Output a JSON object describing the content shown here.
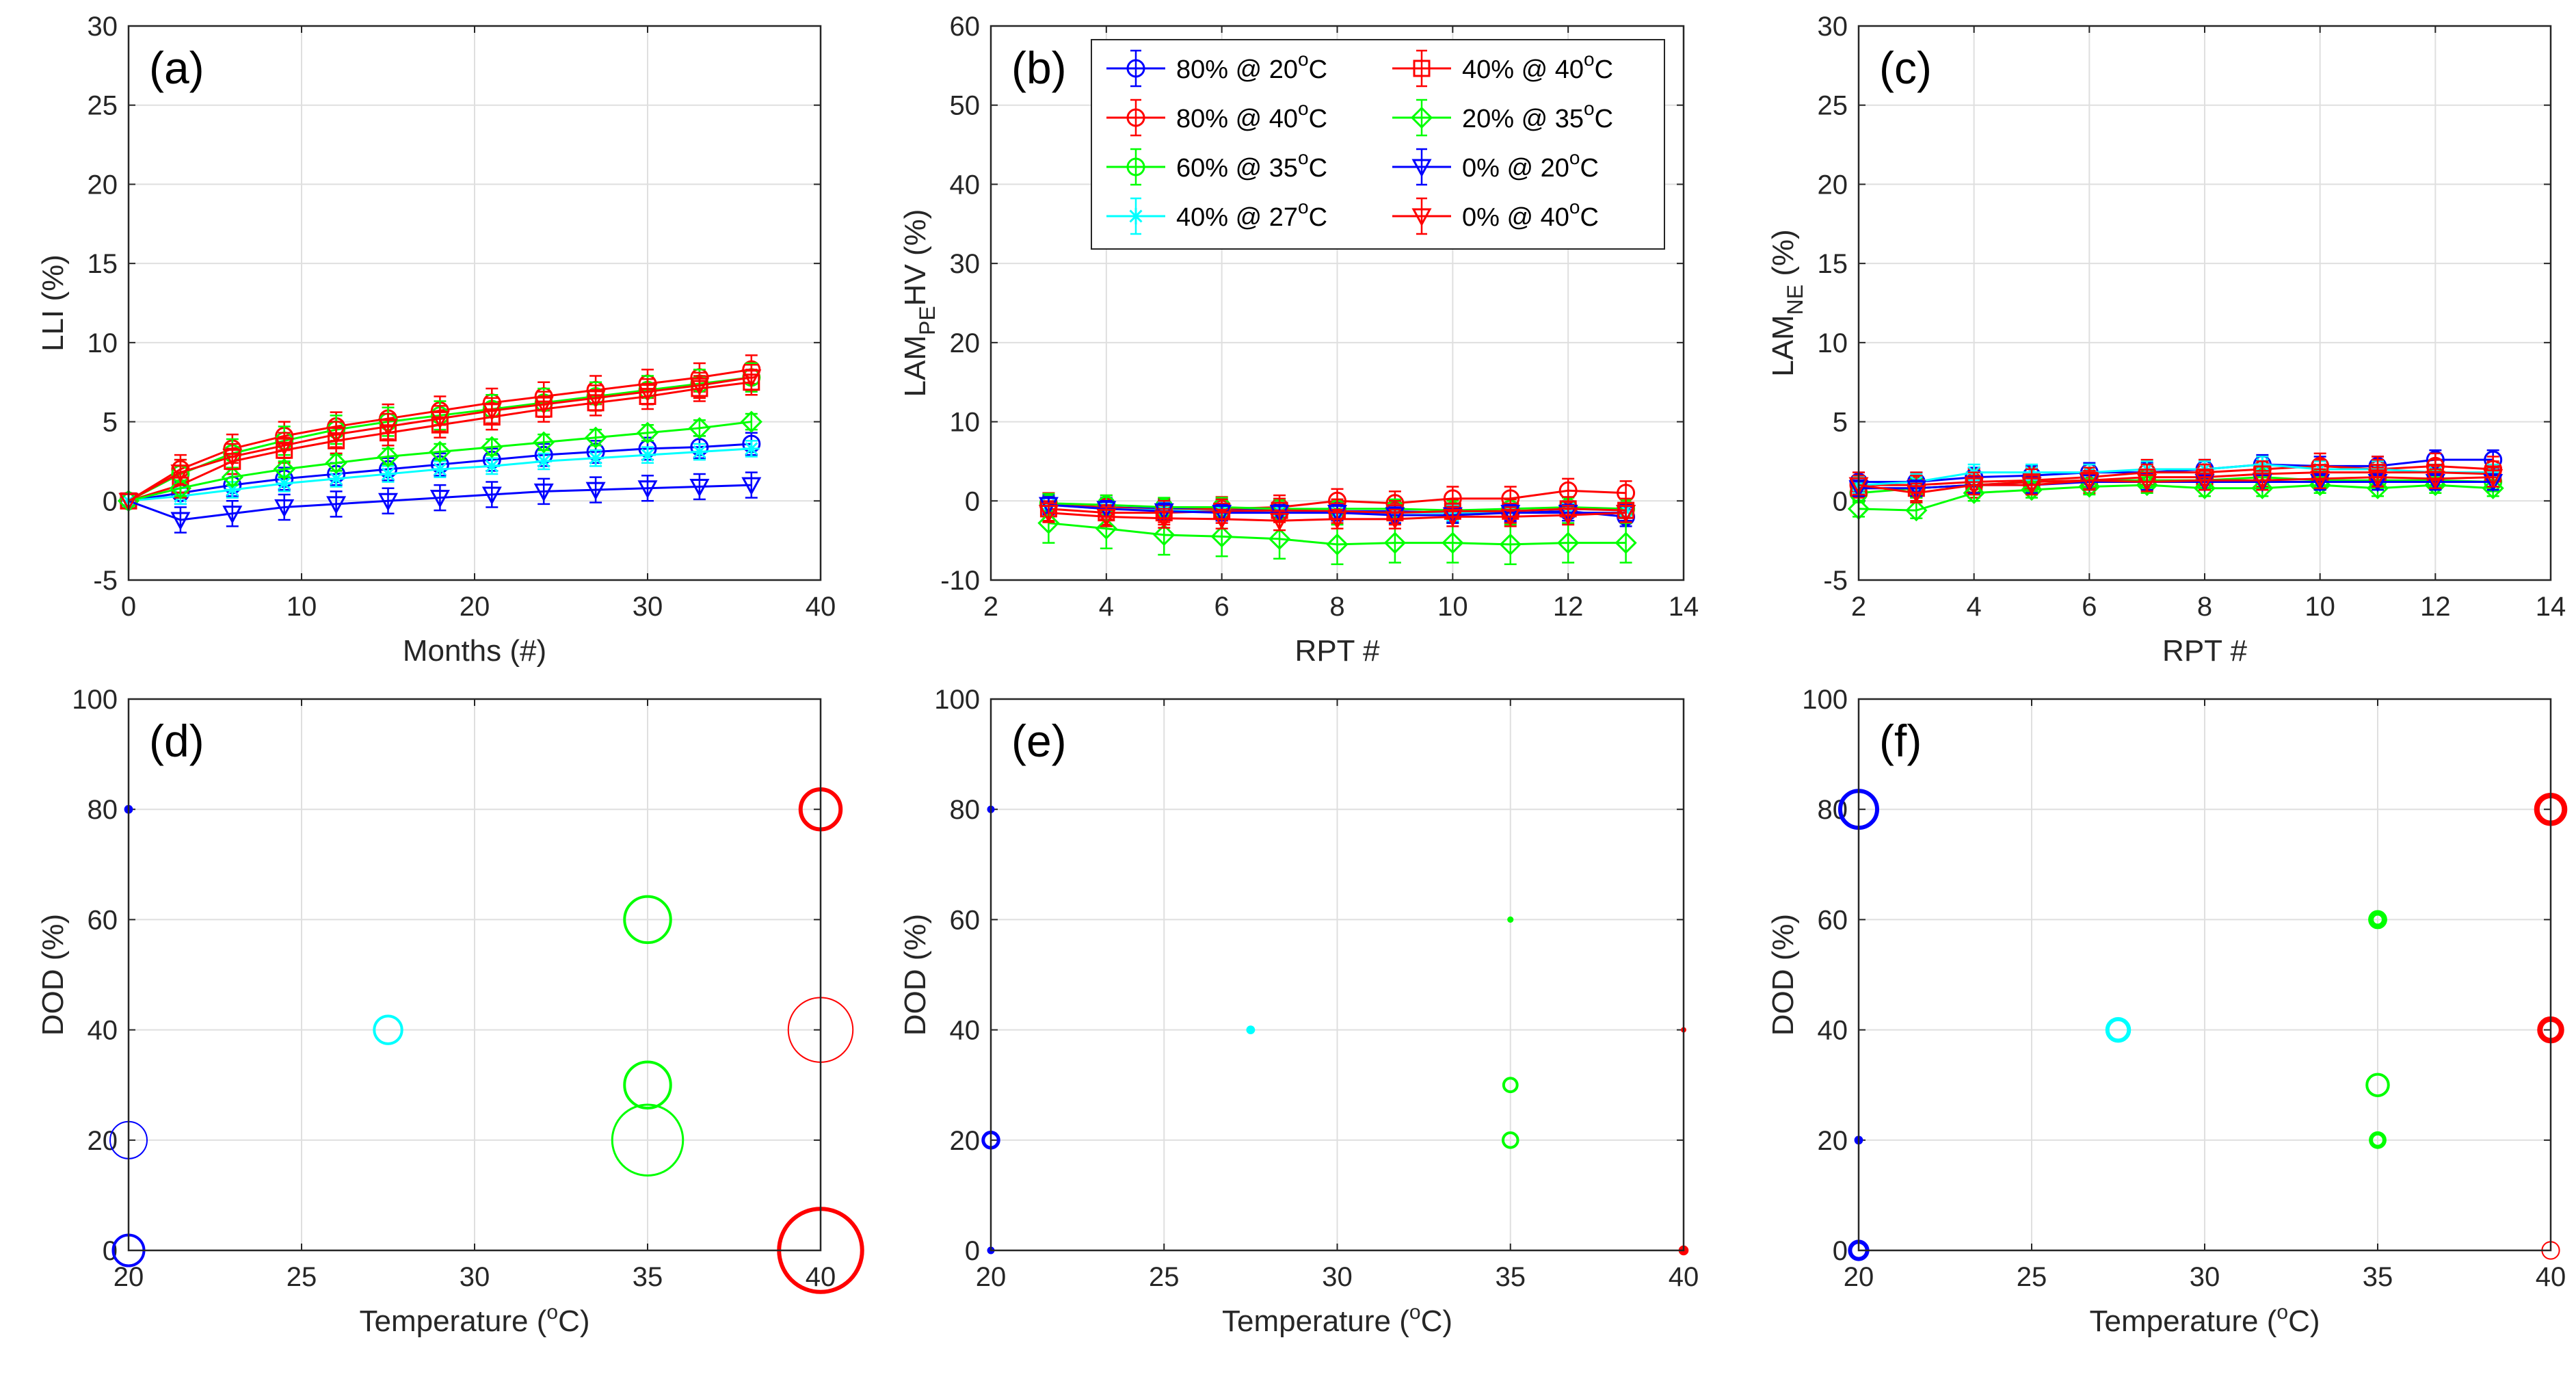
{
  "colors": {
    "blue": "#0000ff",
    "red": "#ff0000",
    "green": "#00ff00",
    "cyan": "#00ffff",
    "axis": "#262626",
    "grid": "#dfdfdf"
  },
  "legend": [
    {
      "label": "80% @ 20°C",
      "base": "80% @ 20",
      "sup": "o",
      "tail": "C",
      "color": "#0000ff",
      "marker": "circle"
    },
    {
      "label": "80% @ 40°C",
      "base": "80% @ 40",
      "sup": "o",
      "tail": "C",
      "color": "#ff0000",
      "marker": "circle"
    },
    {
      "label": "60% @ 35°C",
      "base": "60% @ 35",
      "sup": "o",
      "tail": "C",
      "color": "#00ff00",
      "marker": "circle"
    },
    {
      "label": "40% @ 27°C",
      "base": "40% @ 27",
      "sup": "o",
      "tail": "C",
      "color": "#00ffff",
      "marker": "star"
    },
    {
      "label": "40% @ 40°C",
      "base": "40% @ 40",
      "sup": "o",
      "tail": "C",
      "color": "#ff0000",
      "marker": "square"
    },
    {
      "label": "20% @ 35°C",
      "base": "20% @ 35",
      "sup": "o",
      "tail": "C",
      "color": "#00ff00",
      "marker": "diamond"
    },
    {
      "label": "0% @ 20°C",
      "base": "0% @ 20",
      "sup": "o",
      "tail": "C",
      "color": "#0000ff",
      "marker": "triangle-down"
    },
    {
      "label": "0% @ 40°C",
      "base": "0% @ 40",
      "sup": "o",
      "tail": "C",
      "color": "#ff0000",
      "marker": "triangle-down"
    }
  ],
  "chart_data": [
    {
      "id": "a",
      "panel_label": "(a)",
      "type": "line",
      "xlabel": "Months (#)",
      "ylabel": "LLI (%)",
      "xlim": [
        0,
        40
      ],
      "ylim": [
        -5,
        30
      ],
      "xticks": [
        0,
        10,
        20,
        30,
        40
      ],
      "yticks": [
        -5,
        0,
        5,
        10,
        15,
        20,
        25,
        30
      ],
      "x": [
        0,
        3,
        6,
        9,
        12,
        15,
        18,
        21,
        24,
        27,
        30,
        33,
        36
      ],
      "series": [
        {
          "name": "80% @ 20°C",
          "color": "#0000ff",
          "marker": "circle",
          "err": 0.7,
          "values": [
            0,
            0.5,
            1.0,
            1.4,
            1.7,
            2.0,
            2.3,
            2.6,
            2.9,
            3.1,
            3.3,
            3.4,
            3.6
          ]
        },
        {
          "name": "80% @ 40°C",
          "color": "#ff0000",
          "marker": "circle",
          "err": 0.9,
          "values": [
            0,
            2.0,
            3.3,
            4.1,
            4.7,
            5.2,
            5.7,
            6.2,
            6.6,
            7.0,
            7.4,
            7.8,
            8.3
          ]
        },
        {
          "name": "60% @ 35°C",
          "color": "#00ff00",
          "marker": "circle",
          "err": 0.9,
          "values": [
            0,
            1.7,
            3.0,
            3.8,
            4.5,
            5.0,
            5.4,
            5.8,
            6.2,
            6.6,
            7.0,
            7.4,
            7.8
          ]
        },
        {
          "name": "40% @ 27°C",
          "color": "#00ffff",
          "marker": "star",
          "err": 0.5,
          "values": [
            0,
            0.3,
            0.7,
            1.1,
            1.4,
            1.7,
            2.0,
            2.2,
            2.5,
            2.7,
            2.9,
            3.1,
            3.3
          ]
        },
        {
          "name": "40% @ 40°C",
          "color": "#ff0000",
          "marker": "square",
          "err": 0.8,
          "values": [
            0,
            1.0,
            2.5,
            3.2,
            3.8,
            4.3,
            4.8,
            5.3,
            5.8,
            6.2,
            6.6,
            7.1,
            7.5
          ]
        },
        {
          "name": "20% @ 35°C",
          "color": "#00ff00",
          "marker": "diamond",
          "err": 0.5,
          "values": [
            0,
            0.8,
            1.5,
            2.0,
            2.4,
            2.8,
            3.1,
            3.4,
            3.7,
            4.0,
            4.3,
            4.6,
            5.0
          ]
        },
        {
          "name": "0% @ 20°C",
          "color": "#0000ff",
          "marker": "triangle-down",
          "err": 0.8,
          "values": [
            0,
            -1.2,
            -0.8,
            -0.4,
            -0.2,
            0.0,
            0.2,
            0.4,
            0.6,
            0.7,
            0.8,
            0.9,
            1.0
          ]
        },
        {
          "name": "0% @ 40°C",
          "color": "#ff0000",
          "marker": "triangle-down",
          "err": 0.8,
          "values": [
            0,
            1.8,
            2.8,
            3.5,
            4.2,
            4.7,
            5.2,
            5.7,
            6.1,
            6.5,
            6.9,
            7.3,
            7.8
          ]
        }
      ]
    },
    {
      "id": "b",
      "panel_label": "(b)",
      "type": "line",
      "xlabel": "RPT #",
      "ylabel": "LAM",
      "ylabel_sub": "PE",
      "ylabel_tail": "HV (%)",
      "xlim": [
        2,
        14
      ],
      "ylim": [
        -10,
        60
      ],
      "xticks": [
        2,
        4,
        6,
        8,
        10,
        12,
        14
      ],
      "yticks": [
        -10,
        0,
        10,
        20,
        30,
        40,
        50,
        60
      ],
      "x": [
        3,
        4,
        5,
        6,
        7,
        8,
        9,
        10,
        11,
        12,
        13
      ],
      "series": [
        {
          "name": "80% @ 20°C",
          "color": "#0000ff",
          "marker": "circle",
          "err": 1.2,
          "values": [
            -0.5,
            -0.8,
            -1.0,
            -1.0,
            -1.2,
            -1.3,
            -1.3,
            -1.5,
            -1.5,
            -1.3,
            -2.0
          ]
        },
        {
          "name": "80% @ 40°C",
          "color": "#ff0000",
          "marker": "circle",
          "err": 1.5,
          "values": [
            -0.5,
            -0.8,
            -1.2,
            -1.0,
            -0.8,
            0.0,
            -0.3,
            0.3,
            0.3,
            1.3,
            1.0
          ]
        },
        {
          "name": "60% @ 35°C",
          "color": "#00ff00",
          "marker": "circle",
          "err": 1.2,
          "values": [
            -0.3,
            -0.5,
            -0.8,
            -0.8,
            -1.0,
            -1.0,
            -1.0,
            -1.2,
            -1.0,
            -0.8,
            -1.0
          ]
        },
        {
          "name": "40% @ 27°C",
          "color": "#00ffff",
          "marker": "star",
          "err": 1.0,
          "values": [
            -0.5,
            -1.0,
            -1.2,
            -1.3,
            -1.2,
            -1.5,
            -1.5,
            -1.5,
            -1.3,
            -1.0,
            -1.2
          ]
        },
        {
          "name": "40% @ 40°C",
          "color": "#ff0000",
          "marker": "square",
          "err": 1.5,
          "values": [
            -1.0,
            -1.5,
            -1.5,
            -1.3,
            -1.2,
            -1.3,
            -1.5,
            -1.3,
            -1.3,
            -1.0,
            -1.2
          ]
        },
        {
          "name": "20% @ 35°C",
          "color": "#00ff00",
          "marker": "diamond",
          "err": 2.5,
          "values": [
            -2.8,
            -3.5,
            -4.3,
            -4.5,
            -4.8,
            -5.5,
            -5.3,
            -5.3,
            -5.5,
            -5.3,
            -5.3
          ]
        },
        {
          "name": "0% @ 20°C",
          "color": "#0000ff",
          "marker": "triangle-down",
          "err": 1.0,
          "values": [
            -0.5,
            -1.0,
            -1.3,
            -1.5,
            -1.5,
            -1.5,
            -1.8,
            -1.8,
            -1.5,
            -1.5,
            -1.5
          ]
        },
        {
          "name": "0% @ 40°C",
          "color": "#ff0000",
          "marker": "triangle-down",
          "err": 1.2,
          "values": [
            -1.5,
            -2.0,
            -2.2,
            -2.3,
            -2.5,
            -2.3,
            -2.3,
            -2.0,
            -2.0,
            -1.8,
            -1.5
          ]
        }
      ]
    },
    {
      "id": "c",
      "panel_label": "(c)",
      "type": "line",
      "xlabel": "RPT #",
      "ylabel": "LAM",
      "ylabel_sub": "NE",
      "ylabel_tail": " (%)",
      "xlim": [
        2,
        14
      ],
      "ylim": [
        -5,
        30
      ],
      "xticks": [
        2,
        4,
        6,
        8,
        10,
        12,
        14
      ],
      "yticks": [
        -5,
        0,
        5,
        10,
        15,
        20,
        25,
        30
      ],
      "x": [
        2,
        3,
        4,
        5,
        6,
        7,
        8,
        9,
        10,
        11,
        12,
        13
      ],
      "series": [
        {
          "name": "80% @ 20°C",
          "color": "#0000ff",
          "marker": "circle",
          "err": 0.6,
          "values": [
            1.2,
            1.2,
            1.5,
            1.6,
            1.8,
            1.8,
            2.0,
            2.3,
            2.2,
            2.2,
            2.6,
            2.6
          ]
        },
        {
          "name": "80% @ 40°C",
          "color": "#ff0000",
          "marker": "circle",
          "err": 0.8,
          "values": [
            1.0,
            1.0,
            1.2,
            1.3,
            1.5,
            1.8,
            1.8,
            2.0,
            2.2,
            2.0,
            2.2,
            2.0
          ]
        },
        {
          "name": "60% @ 35°C",
          "color": "#00ff00",
          "marker": "circle",
          "err": 0.6,
          "values": [
            0.5,
            0.8,
            1.0,
            1.2,
            1.3,
            1.3,
            1.3,
            1.5,
            1.3,
            1.3,
            1.3,
            1.2
          ]
        },
        {
          "name": "40% @ 27°C",
          "color": "#00ffff",
          "marker": "star",
          "err": 0.5,
          "values": [
            1.0,
            1.2,
            1.8,
            1.8,
            1.8,
            2.0,
            2.0,
            2.3,
            2.0,
            2.0,
            1.8,
            1.8
          ]
        },
        {
          "name": "40% @ 40°C",
          "color": "#ff0000",
          "marker": "square",
          "err": 0.8,
          "values": [
            0.8,
            0.8,
            1.0,
            1.2,
            1.3,
            1.5,
            1.5,
            1.7,
            1.8,
            1.8,
            1.8,
            1.7
          ]
        },
        {
          "name": "20% @ 35°C",
          "color": "#00ff00",
          "marker": "diamond",
          "err": 0.5,
          "values": [
            -0.5,
            -0.6,
            0.5,
            0.7,
            0.9,
            1.0,
            0.8,
            0.8,
            1.0,
            0.8,
            1.0,
            0.8
          ]
        },
        {
          "name": "0% @ 20°C",
          "color": "#0000ff",
          "marker": "triangle-down",
          "err": 0.5,
          "values": [
            0.8,
            0.8,
            1.0,
            1.0,
            1.2,
            1.2,
            1.2,
            1.2,
            1.2,
            1.2,
            1.2,
            1.2
          ]
        },
        {
          "name": "0% @ 40°C",
          "color": "#ff0000",
          "marker": "triangle-down",
          "err": 0.6,
          "values": [
            1.0,
            0.5,
            1.0,
            1.0,
            1.3,
            1.2,
            1.3,
            1.3,
            1.4,
            1.5,
            1.4,
            1.5
          ]
        }
      ]
    },
    {
      "id": "d",
      "panel_label": "(d)",
      "type": "scatter",
      "xlabel": "Temperature (°C)",
      "xlabel_base": "Temperature (",
      "xlabel_sup": "o",
      "xlabel_tail": "C)",
      "ylabel": "DOD (%)",
      "xlim": [
        20,
        40
      ],
      "ylim": [
        0,
        100
      ],
      "xticks": [
        20,
        25,
        30,
        35,
        40
      ],
      "yticks": [
        0,
        20,
        40,
        60,
        80,
        100
      ],
      "points": [
        {
          "x": 20,
          "y": 80,
          "size": 0.12,
          "color": "#0000ff",
          "fill": true
        },
        {
          "x": 20,
          "y": 20,
          "size": 0.6,
          "color": "#0000ff",
          "weight": 1
        },
        {
          "x": 20,
          "y": 0,
          "size": 0.5,
          "color": "#0000ff",
          "weight": 2
        },
        {
          "x": 27.5,
          "y": 40,
          "size": 0.45,
          "color": "#00ffff",
          "weight": 2
        },
        {
          "x": 35,
          "y": 60,
          "size": 0.75,
          "color": "#00ff00",
          "weight": 2
        },
        {
          "x": 35,
          "y": 30,
          "size": 0.75,
          "color": "#00ff00",
          "weight": 2
        },
        {
          "x": 35,
          "y": 20,
          "size": 1.15,
          "color": "#00ff00",
          "weight": 1.5
        },
        {
          "x": 40,
          "y": 80,
          "size": 0.65,
          "color": "#ff0000",
          "weight": 3
        },
        {
          "x": 40,
          "y": 40,
          "size": 1.05,
          "color": "#ff0000",
          "weight": 1
        },
        {
          "x": 40,
          "y": 0,
          "size": 1.35,
          "color": "#ff0000",
          "weight": 3
        }
      ]
    },
    {
      "id": "e",
      "panel_label": "(e)",
      "type": "scatter",
      "xlabel": "Temperature (°C)",
      "xlabel_base": "Temperature (",
      "xlabel_sup": "o",
      "xlabel_tail": "C)",
      "ylabel": "DOD (%)",
      "xlim": [
        20,
        40
      ],
      "ylim": [
        0,
        100
      ],
      "xticks": [
        20,
        25,
        30,
        35,
        40
      ],
      "yticks": [
        0,
        20,
        40,
        60,
        80,
        100
      ],
      "points": [
        {
          "x": 20,
          "y": 80,
          "size": 0.1,
          "color": "#0000ff",
          "fill": true
        },
        {
          "x": 20,
          "y": 20,
          "size": 0.25,
          "color": "#0000ff",
          "weight": 2.5
        },
        {
          "x": 20,
          "y": 0,
          "size": 0.1,
          "color": "#0000ff",
          "fill": true
        },
        {
          "x": 27.5,
          "y": 40,
          "size": 0.12,
          "color": "#00ffff",
          "fill": true
        },
        {
          "x": 35,
          "y": 60,
          "size": 0.08,
          "color": "#00ff00",
          "fill": true
        },
        {
          "x": 35,
          "y": 30,
          "size": 0.22,
          "color": "#00ff00",
          "weight": 2
        },
        {
          "x": 35,
          "y": 20,
          "size": 0.24,
          "color": "#00ff00",
          "weight": 2
        },
        {
          "x": 40,
          "y": 40,
          "size": 0.06,
          "color": "#ff0000",
          "fill": true
        },
        {
          "x": 40,
          "y": 0,
          "size": 0.14,
          "color": "#ff0000",
          "fill": true
        }
      ]
    },
    {
      "id": "f",
      "panel_label": "(f)",
      "type": "scatter",
      "xlabel": "Temperature (°C)",
      "xlabel_base": "Temperature (",
      "xlabel_sup": "o",
      "xlabel_tail": "C)",
      "ylabel": "DOD (%)",
      "xlim": [
        20,
        40
      ],
      "ylim": [
        0,
        100
      ],
      "xticks": [
        20,
        25,
        30,
        35,
        40
      ],
      "yticks": [
        0,
        20,
        40,
        60,
        80,
        100
      ],
      "points": [
        {
          "x": 20,
          "y": 80,
          "size": 0.6,
          "color": "#0000ff",
          "weight": 3
        },
        {
          "x": 20,
          "y": 20,
          "size": 0.12,
          "color": "#0000ff",
          "fill": true
        },
        {
          "x": 20,
          "y": 0,
          "size": 0.28,
          "color": "#0000ff",
          "weight": 3
        },
        {
          "x": 27.5,
          "y": 40,
          "size": 0.35,
          "color": "#00ffff",
          "weight": 3
        },
        {
          "x": 35,
          "y": 60,
          "size": 0.22,
          "color": "#00ff00",
          "weight": 4
        },
        {
          "x": 35,
          "y": 30,
          "size": 0.35,
          "color": "#00ff00",
          "weight": 2
        },
        {
          "x": 35,
          "y": 20,
          "size": 0.22,
          "color": "#00ff00",
          "weight": 3
        },
        {
          "x": 40,
          "y": 80,
          "size": 0.45,
          "color": "#ff0000",
          "weight": 4
        },
        {
          "x": 40,
          "y": 40,
          "size": 0.35,
          "color": "#ff0000",
          "weight": 4
        },
        {
          "x": 40,
          "y": 0,
          "size": 0.28,
          "color": "#ff0000",
          "weight": 1
        }
      ]
    }
  ]
}
